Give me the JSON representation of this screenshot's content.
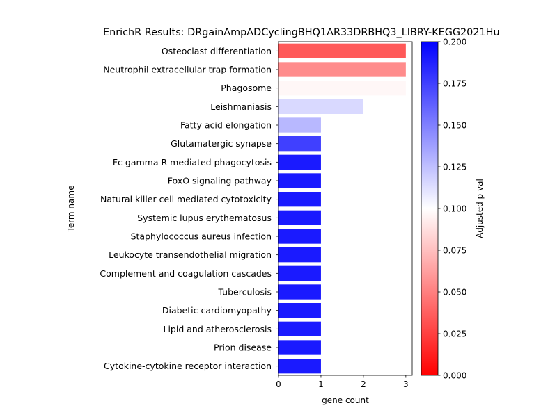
{
  "chart_data": {
    "type": "bar",
    "orientation": "horizontal",
    "title": "EnrichR Results: DRgainAmpADCyclingBHQ1AR33DRBHQ3_LIBRY-KEGG2021Hu",
    "xlabel": "gene count",
    "ylabel": "Term name",
    "xlim": [
      0,
      3.15
    ],
    "xticks": [
      0,
      1,
      2,
      3
    ],
    "grid": false,
    "categories": [
      "Osteoclast differentiation",
      "Neutrophil extracellular trap formation",
      "Phagosome",
      "Leishmaniasis",
      "Fatty acid elongation",
      "Glutamatergic synapse",
      "Fc gamma R-mediated phagocytosis",
      "FoxO signaling pathway",
      "Natural killer cell mediated cytotoxicity",
      "Systemic lupus erythematosus",
      "Staphylococcus aureus infection",
      "Leukocyte transendothelial migration",
      "Complement and coagulation cascades",
      "Tuberculosis",
      "Diabetic cardiomyopathy",
      "Lipid and atherosclerosis",
      "Prion disease",
      "Cytokine-cytokine receptor interaction"
    ],
    "values": [
      3,
      3,
      3,
      2,
      1,
      1,
      1,
      1,
      1,
      1,
      1,
      1,
      1,
      1,
      1,
      1,
      1,
      1
    ],
    "color_values": [
      0.035,
      0.055,
      0.097,
      0.115,
      0.128,
      0.175,
      0.19,
      0.19,
      0.19,
      0.19,
      0.19,
      0.19,
      0.19,
      0.19,
      0.19,
      0.19,
      0.19,
      0.19
    ],
    "colorbar": {
      "label": "Adjusted p val",
      "range": [
        0,
        0.2
      ],
      "ticks": [
        "0.000",
        "0.025",
        "0.050",
        "0.075",
        "0.100",
        "0.125",
        "0.150",
        "0.175",
        "0.200"
      ],
      "colormap": "bwr_r",
      "colors": {
        "low": "#ff0000",
        "mid": "#ffffff",
        "high": "#0000ff"
      }
    }
  }
}
